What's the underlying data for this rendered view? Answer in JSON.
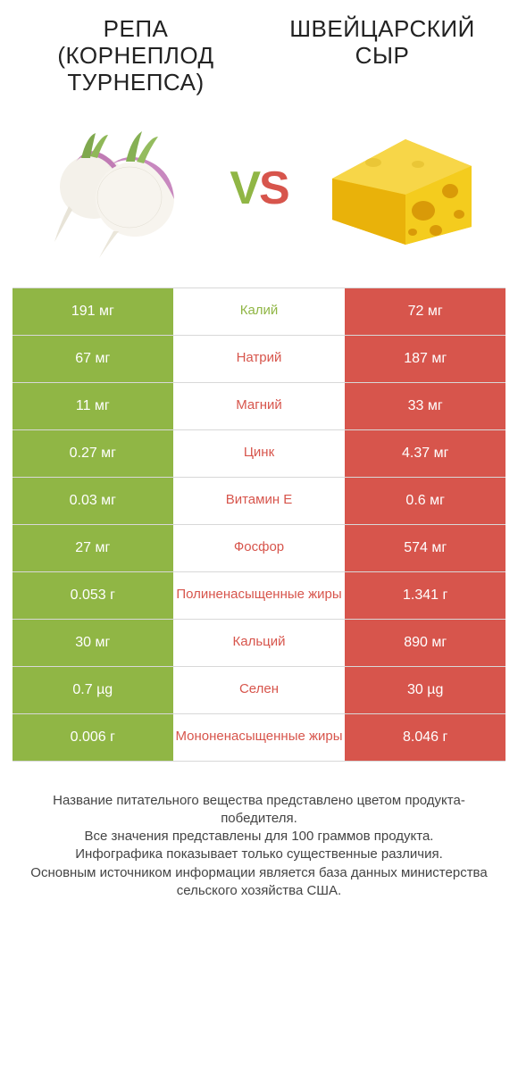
{
  "colors": {
    "left_bg": "#90b645",
    "right_bg": "#d7554c",
    "left_text": "#ffffff",
    "right_text": "#ffffff",
    "mid_text_left": "#90b645",
    "mid_text_right": "#d7554c",
    "vs_left": "#90b645",
    "vs_right": "#d7554c"
  },
  "left": {
    "title_line1": "РЕПА",
    "title_line2": "(КОРНЕПЛОД",
    "title_line3": "ТУРНЕПСА)"
  },
  "right": {
    "title_line1": "ШВЕЙЦАРСКИЙ",
    "title_line2": "СЫР"
  },
  "vs": "VS",
  "rows": [
    {
      "left": "191 мг",
      "mid": "Калий",
      "right": "72 мг",
      "mid_side": "left"
    },
    {
      "left": "67 мг",
      "mid": "Натрий",
      "right": "187 мг",
      "mid_side": "right"
    },
    {
      "left": "11 мг",
      "mid": "Магний",
      "right": "33 мг",
      "mid_side": "right"
    },
    {
      "left": "0.27 мг",
      "mid": "Цинк",
      "right": "4.37 мг",
      "mid_side": "right"
    },
    {
      "left": "0.03 мг",
      "mid": "Витамин E",
      "right": "0.6 мг",
      "mid_side": "right"
    },
    {
      "left": "27 мг",
      "mid": "Фосфор",
      "right": "574 мг",
      "mid_side": "right"
    },
    {
      "left": "0.053 г",
      "mid": "Полиненасыщенные жиры",
      "right": "1.341 г",
      "mid_side": "right"
    },
    {
      "left": "30 мг",
      "mid": "Кальций",
      "right": "890 мг",
      "mid_side": "right"
    },
    {
      "left": "0.7 µg",
      "mid": "Селен",
      "right": "30 µg",
      "mid_side": "right"
    },
    {
      "left": "0.006 г",
      "mid": "Мононенасыщенные жиры",
      "right": "8.046 г",
      "mid_side": "right"
    }
  ],
  "footer": {
    "l1": "Название питательного вещества представлено цветом продукта-победителя.",
    "l2": "Все значения представлены для 100 граммов продукта.",
    "l3": "Инфографика показывает только существенные различия.",
    "l4": "Основным источником информации является база данных министерства сельского хозяйства США."
  }
}
